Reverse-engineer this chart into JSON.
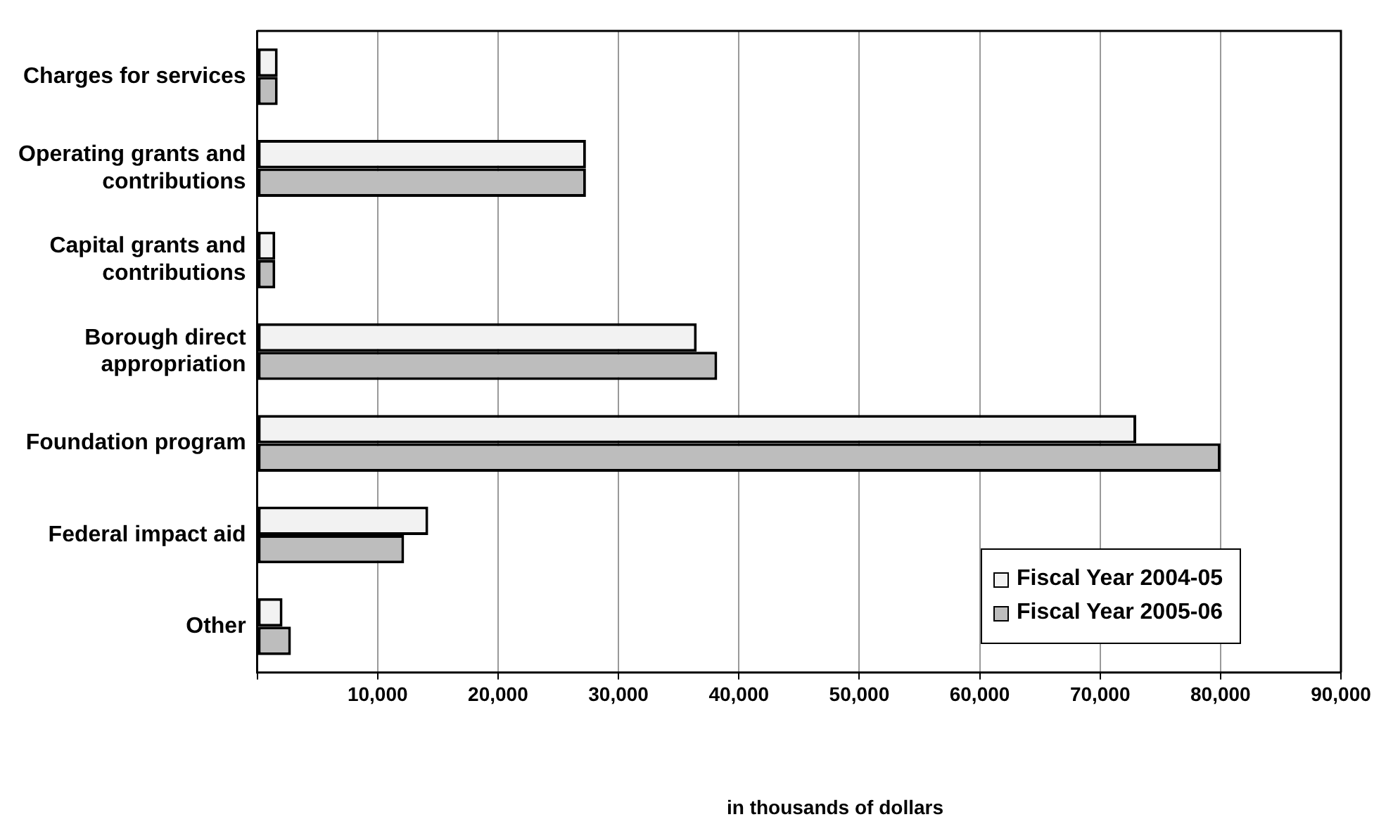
{
  "chart_data": {
    "type": "bar",
    "orientation": "horizontal",
    "xlabel": "in thousands of dollars",
    "categories": [
      "Charges for services",
      "Operating grants and contributions",
      "Capital grants and contributions",
      "Borough direct appropriation",
      "Foundation program",
      "Federal impact aid",
      "Other"
    ],
    "series": [
      {
        "name": "Fiscal Year 2004-05",
        "color": "#f2f2f2",
        "values": [
          1700,
          27300,
          1500,
          36500,
          73000,
          14200,
          2100
        ]
      },
      {
        "name": "Fiscal Year 2005-06",
        "color": "#bdbdbd",
        "values": [
          1700,
          27300,
          1500,
          38200,
          80000,
          12200,
          2800
        ]
      }
    ],
    "xlim": [
      0,
      90000
    ],
    "xticks": [
      {
        "value": 0,
        "label": null
      },
      {
        "value": 10000,
        "label": "10,000"
      },
      {
        "value": 20000,
        "label": "20,000"
      },
      {
        "value": 30000,
        "label": "30,000"
      },
      {
        "value": 40000,
        "label": "40,000"
      },
      {
        "value": 50000,
        "label": "50,000"
      },
      {
        "value": 60000,
        "label": "60,000"
      },
      {
        "value": 70000,
        "label": "70,000"
      },
      {
        "value": 80000,
        "label": "80,000"
      },
      {
        "value": 90000,
        "label": "90,000"
      }
    ],
    "grid": "x",
    "legend": "bottom right"
  }
}
